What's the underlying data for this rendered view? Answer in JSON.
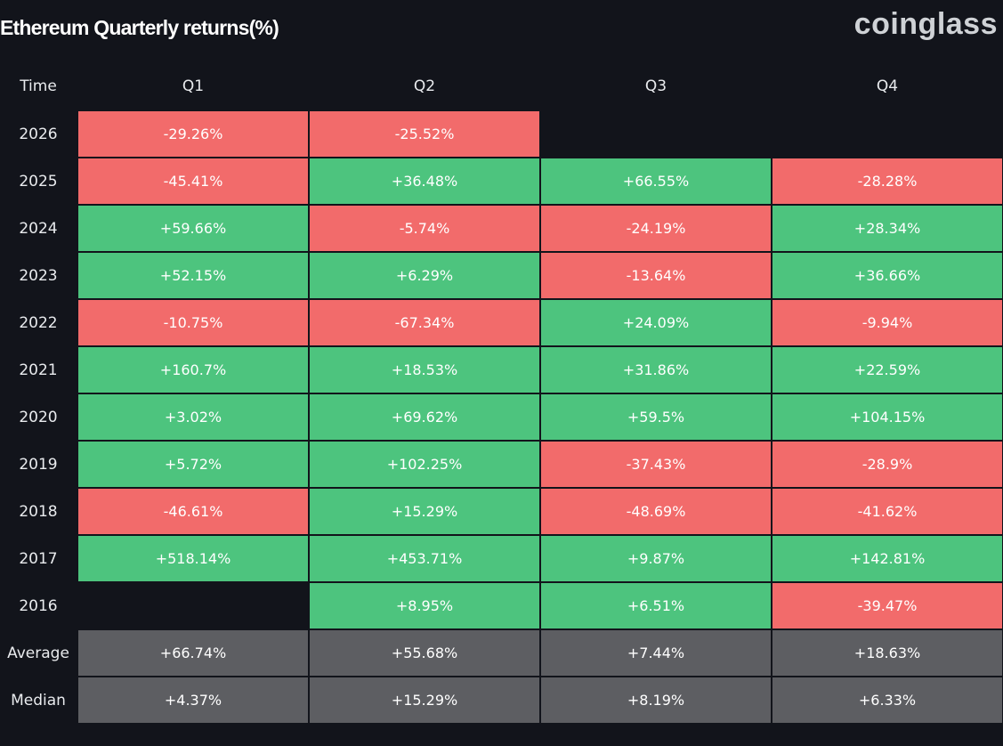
{
  "title": "Ethereum Quarterly returns(%)",
  "logo": "coinglass",
  "colors": {
    "background": "#12141b",
    "positive": "#4dc47e",
    "negative": "#f26b6b",
    "stat": "#5d5e62"
  },
  "chart_data": {
    "type": "table",
    "title": "Ethereum Quarterly returns(%)",
    "row_header": "Time",
    "columns": [
      "Q1",
      "Q2",
      "Q3",
      "Q4"
    ],
    "rows": [
      {
        "label": "2026",
        "kind": "year",
        "cells": [
          "-29.26%",
          "-25.52%",
          "",
          ""
        ],
        "values": [
          -29.26,
          -25.52,
          null,
          null
        ]
      },
      {
        "label": "2025",
        "kind": "year",
        "cells": [
          "-45.41%",
          "+36.48%",
          "+66.55%",
          "-28.28%"
        ],
        "values": [
          -45.41,
          36.48,
          66.55,
          -28.28
        ]
      },
      {
        "label": "2024",
        "kind": "year",
        "cells": [
          "+59.66%",
          "-5.74%",
          "-24.19%",
          "+28.34%"
        ],
        "values": [
          59.66,
          -5.74,
          -24.19,
          28.34
        ]
      },
      {
        "label": "2023",
        "kind": "year",
        "cells": [
          "+52.15%",
          "+6.29%",
          "-13.64%",
          "+36.66%"
        ],
        "values": [
          52.15,
          6.29,
          -13.64,
          36.66
        ]
      },
      {
        "label": "2022",
        "kind": "year",
        "cells": [
          "-10.75%",
          "-67.34%",
          "+24.09%",
          "-9.94%"
        ],
        "values": [
          -10.75,
          -67.34,
          24.09,
          -9.94
        ]
      },
      {
        "label": "2021",
        "kind": "year",
        "cells": [
          "+160.7%",
          "+18.53%",
          "+31.86%",
          "+22.59%"
        ],
        "values": [
          160.7,
          18.53,
          31.86,
          22.59
        ]
      },
      {
        "label": "2020",
        "kind": "year",
        "cells": [
          "+3.02%",
          "+69.62%",
          "+59.5%",
          "+104.15%"
        ],
        "values": [
          3.02,
          69.62,
          59.5,
          104.15
        ]
      },
      {
        "label": "2019",
        "kind": "year",
        "cells": [
          "+5.72%",
          "+102.25%",
          "-37.43%",
          "-28.9%"
        ],
        "values": [
          5.72,
          102.25,
          -37.43,
          -28.9
        ]
      },
      {
        "label": "2018",
        "kind": "year",
        "cells": [
          "-46.61%",
          "+15.29%",
          "-48.69%",
          "-41.62%"
        ],
        "values": [
          -46.61,
          15.29,
          -48.69,
          -41.62
        ]
      },
      {
        "label": "2017",
        "kind": "year",
        "cells": [
          "+518.14%",
          "+453.71%",
          "+9.87%",
          "+142.81%"
        ],
        "values": [
          518.14,
          453.71,
          9.87,
          142.81
        ]
      },
      {
        "label": "2016",
        "kind": "year",
        "cells": [
          "",
          "+8.95%",
          "+6.51%",
          "-39.47%"
        ],
        "values": [
          null,
          8.95,
          6.51,
          -39.47
        ]
      },
      {
        "label": "Average",
        "kind": "stat",
        "cells": [
          "+66.74%",
          "+55.68%",
          "+7.44%",
          "+18.63%"
        ],
        "values": [
          66.74,
          55.68,
          7.44,
          18.63
        ]
      },
      {
        "label": "Median",
        "kind": "stat",
        "cells": [
          "+4.37%",
          "+15.29%",
          "+8.19%",
          "+6.33%"
        ],
        "values": [
          4.37,
          15.29,
          8.19,
          6.33
        ]
      }
    ]
  }
}
